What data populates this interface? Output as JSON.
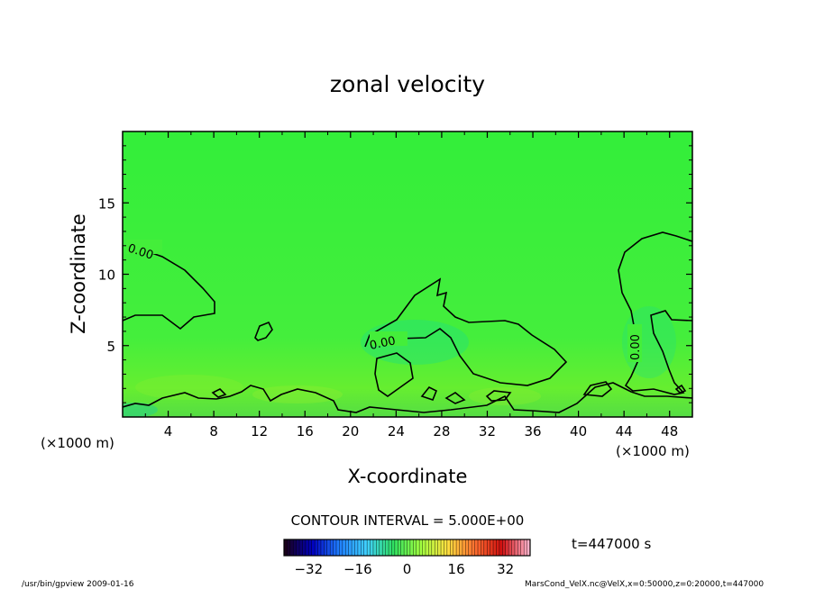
{
  "chart_data": {
    "type": "heatmap",
    "title": "zonal velocity",
    "xlabel": "X-coordinate",
    "ylabel": "Z-coordinate",
    "x_unit": "(×1000 m)",
    "y_unit": "(×1000 m)",
    "xlim": [
      0,
      50
    ],
    "ylim": [
      0,
      20
    ],
    "x_ticks": [
      4,
      8,
      12,
      16,
      20,
      24,
      28,
      32,
      36,
      40,
      44,
      48
    ],
    "y_ticks": [
      5,
      10,
      15
    ],
    "contour_interval": "CONTOUR INTERVAL = 5.000E+00",
    "contour_labels": [
      "0.00",
      "0.00",
      "0.00"
    ],
    "time_label": "t=447000 s",
    "colorbar": {
      "range": [
        -40,
        40
      ],
      "ticks": [
        -32,
        -16,
        0,
        16,
        32
      ],
      "colors": [
        "#1a001a",
        "#0000c0",
        "#2080ff",
        "#40d0ff",
        "#30e060",
        "#a0ff40",
        "#ffe040",
        "#ff7030",
        "#d01010",
        "#ffb0c8"
      ]
    },
    "field_color": "#33ee44"
  },
  "footer": {
    "left": "/usr/bin/gpview   2009-01-16",
    "right": "MarsCond_VelX.nc@VelX,x=0:50000,z=0:20000,t=447000"
  }
}
